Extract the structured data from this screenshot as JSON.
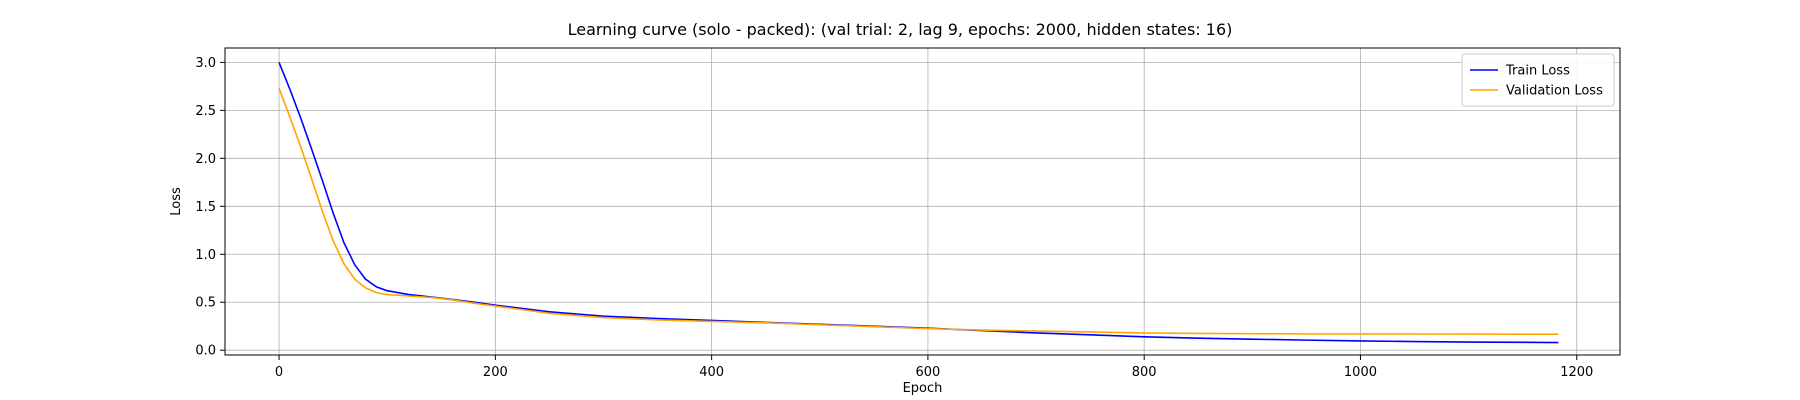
{
  "chart_data": {
    "type": "line",
    "title": "Learning curve (solo - packed): (val trial: 2, lag 9, epochs: 2000, hidden states: 16)",
    "xlabel": "Epoch",
    "ylabel": "Loss",
    "xlim": [
      -50,
      1240
    ],
    "ylim": [
      -0.05,
      3.15
    ],
    "xticks": [
      0,
      200,
      400,
      600,
      800,
      1000,
      1200
    ],
    "xtick_labels": [
      "0",
      "200",
      "400",
      "600",
      "800",
      "1000",
      "1200"
    ],
    "yticks": [
      0.0,
      0.5,
      1.0,
      1.5,
      2.0,
      2.5,
      3.0
    ],
    "ytick_labels": [
      "0.0",
      "0.5",
      "1.0",
      "1.5",
      "2.0",
      "2.5",
      "3.0"
    ],
    "grid": true,
    "legend_position": "top-right",
    "series": [
      {
        "name": "Train Loss",
        "color": "#0000ff",
        "x": [
          0,
          10,
          20,
          30,
          40,
          50,
          60,
          70,
          80,
          90,
          100,
          120,
          140,
          160,
          180,
          200,
          250,
          300,
          350,
          400,
          450,
          500,
          550,
          600,
          650,
          700,
          750,
          800,
          850,
          900,
          950,
          1000,
          1050,
          1100,
          1150,
          1183
        ],
        "y": [
          3.0,
          2.72,
          2.42,
          2.1,
          1.77,
          1.43,
          1.12,
          0.89,
          0.74,
          0.66,
          0.62,
          0.58,
          0.555,
          0.53,
          0.5,
          0.47,
          0.4,
          0.355,
          0.33,
          0.31,
          0.29,
          0.27,
          0.25,
          0.23,
          0.205,
          0.18,
          0.16,
          0.14,
          0.125,
          0.115,
          0.105,
          0.097,
          0.09,
          0.085,
          0.082,
          0.08
        ]
      },
      {
        "name": "Validation Loss",
        "color": "#ffa500",
        "x": [
          0,
          10,
          20,
          30,
          40,
          50,
          60,
          70,
          80,
          90,
          100,
          120,
          140,
          160,
          180,
          200,
          250,
          300,
          350,
          400,
          450,
          500,
          550,
          600,
          650,
          700,
          750,
          800,
          850,
          900,
          950,
          1000,
          1050,
          1100,
          1150,
          1183
        ],
        "y": [
          2.73,
          2.43,
          2.12,
          1.79,
          1.45,
          1.14,
          0.9,
          0.74,
          0.65,
          0.6,
          0.58,
          0.565,
          0.55,
          0.525,
          0.49,
          0.46,
          0.385,
          0.34,
          0.315,
          0.3,
          0.285,
          0.265,
          0.245,
          0.225,
          0.21,
          0.2,
          0.19,
          0.18,
          0.175,
          0.172,
          0.17,
          0.17,
          0.169,
          0.168,
          0.167,
          0.167
        ]
      }
    ]
  }
}
